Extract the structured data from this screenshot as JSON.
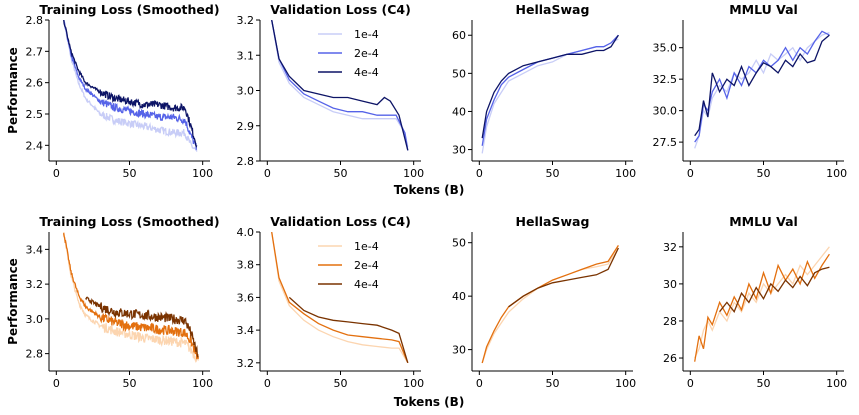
{
  "chart_data": [
    {
      "type": "line",
      "title": "Training Loss (Smoothed)",
      "ylabel": "Performance",
      "xlim": [
        -5,
        105
      ],
      "ylim": [
        2.35,
        2.8
      ],
      "xticks": [
        0,
        50,
        100
      ],
      "yticks": [
        2.4,
        2.5,
        2.6,
        2.7,
        2.8
      ],
      "ytick_labels": [
        "2.4",
        "2.5",
        "2.6",
        "2.7",
        "2.8"
      ],
      "palette": "blue",
      "noise": 0.012,
      "series": [
        {
          "name": "1e-4",
          "color": "#c8cdf7",
          "x": [
            5,
            10,
            15,
            20,
            30,
            40,
            50,
            60,
            70,
            80,
            88,
            92,
            96
          ],
          "y": [
            2.8,
            2.68,
            2.6,
            2.55,
            2.5,
            2.48,
            2.47,
            2.46,
            2.45,
            2.44,
            2.44,
            2.4,
            2.38
          ]
        },
        {
          "name": "2e-4",
          "color": "#5663e8",
          "x": [
            5,
            10,
            15,
            20,
            30,
            40,
            50,
            60,
            70,
            80,
            88,
            92,
            96
          ],
          "y": [
            2.8,
            2.69,
            2.62,
            2.58,
            2.54,
            2.52,
            2.51,
            2.5,
            2.49,
            2.49,
            2.48,
            2.43,
            2.39
          ]
        },
        {
          "name": "4e-4",
          "color": "#0d1466",
          "x": [
            5,
            10,
            15,
            20,
            30,
            40,
            50,
            60,
            70,
            80,
            88,
            92,
            96
          ],
          "y": [
            2.8,
            2.7,
            2.64,
            2.6,
            2.57,
            2.55,
            2.54,
            2.53,
            2.53,
            2.52,
            2.52,
            2.46,
            2.4
          ]
        }
      ]
    },
    {
      "type": "line",
      "title": "Validation Loss (C4)",
      "xlim": [
        -5,
        105
      ],
      "ylim": [
        2.8,
        3.2
      ],
      "xticks": [
        0,
        50,
        100
      ],
      "yticks": [
        2.8,
        2.9,
        3.0,
        3.1,
        3.2
      ],
      "ytick_labels": [
        "2.8",
        "2.9",
        "3.0",
        "3.1",
        "3.2"
      ],
      "palette": "blue",
      "legend": "top-right",
      "noise": 0,
      "series": [
        {
          "name": "1e-4",
          "color": "#c8cdf7",
          "x": [
            3,
            8,
            15,
            25,
            35,
            45,
            55,
            65,
            75,
            82,
            88,
            94,
            96
          ],
          "y": [
            3.2,
            3.08,
            3.02,
            2.98,
            2.96,
            2.94,
            2.93,
            2.92,
            2.92,
            2.92,
            2.92,
            2.88,
            2.84
          ]
        },
        {
          "name": "2e-4",
          "color": "#5663e8",
          "x": [
            3,
            8,
            15,
            25,
            35,
            45,
            55,
            65,
            75,
            82,
            88,
            94,
            96
          ],
          "y": [
            3.2,
            3.09,
            3.03,
            2.99,
            2.97,
            2.95,
            2.94,
            2.94,
            2.93,
            2.93,
            2.93,
            2.88,
            2.83
          ]
        },
        {
          "name": "4e-4",
          "color": "#0d1466",
          "x": [
            3,
            8,
            15,
            25,
            35,
            45,
            55,
            65,
            75,
            80,
            84,
            90,
            96
          ],
          "y": [
            3.2,
            3.09,
            3.04,
            3.0,
            2.99,
            2.98,
            2.98,
            2.97,
            2.96,
            2.98,
            2.97,
            2.93,
            2.83
          ]
        }
      ]
    },
    {
      "type": "line",
      "title": "HellaSwag",
      "xlim": [
        -5,
        105
      ],
      "ylim": [
        27,
        64
      ],
      "xticks": [
        0,
        50,
        100
      ],
      "yticks": [
        30,
        40,
        50,
        60
      ],
      "ytick_labels": [
        "30",
        "40",
        "50",
        "60"
      ],
      "palette": "blue",
      "noise": 0,
      "series": [
        {
          "name": "1e-4",
          "color": "#c8cdf7",
          "x": [
            2,
            5,
            10,
            15,
            20,
            30,
            40,
            50,
            60,
            70,
            80,
            85,
            90,
            95
          ],
          "y": [
            29,
            36,
            42,
            45,
            48,
            50,
            52,
            53,
            55,
            56,
            57,
            57,
            58,
            59
          ]
        },
        {
          "name": "2e-4",
          "color": "#5663e8",
          "x": [
            2,
            5,
            10,
            15,
            20,
            30,
            40,
            50,
            60,
            70,
            80,
            85,
            90,
            95
          ],
          "y": [
            31,
            38,
            43,
            47,
            49,
            51,
            53,
            54,
            55,
            56,
            57,
            57,
            58,
            60
          ]
        },
        {
          "name": "4e-4",
          "color": "#0d1466",
          "x": [
            2,
            5,
            10,
            15,
            20,
            30,
            40,
            50,
            60,
            70,
            80,
            85,
            90,
            95
          ],
          "y": [
            33,
            40,
            45,
            48,
            50,
            52,
            53,
            54,
            55,
            55,
            56,
            56,
            57,
            60
          ]
        }
      ]
    },
    {
      "type": "line",
      "title": "MMLU Val",
      "xlim": [
        -5,
        105
      ],
      "ylim": [
        26,
        37.2
      ],
      "xticks": [
        0,
        50,
        100
      ],
      "yticks": [
        27.5,
        30.0,
        32.5,
        35.0
      ],
      "ytick_labels": [
        "27.5",
        "30.0",
        "32.5",
        "35.0"
      ],
      "palette": "blue",
      "noise": 0,
      "series": [
        {
          "name": "1e-4",
          "color": "#c8cdf7",
          "x": [
            3,
            6,
            9,
            12,
            15,
            20,
            25,
            30,
            35,
            40,
            45,
            50,
            55,
            60,
            65,
            70,
            75,
            80,
            85,
            90,
            95
          ],
          "y": [
            27,
            28,
            30,
            29.5,
            31,
            32,
            31.5,
            33,
            32.5,
            33,
            34,
            33,
            34.5,
            34,
            34.5,
            35,
            34,
            35,
            35.5,
            36,
            36.2
          ]
        },
        {
          "name": "2e-4",
          "color": "#5663e8",
          "x": [
            3,
            6,
            9,
            12,
            15,
            20,
            25,
            30,
            35,
            40,
            45,
            50,
            55,
            60,
            65,
            70,
            75,
            80,
            85,
            90,
            95
          ],
          "y": [
            27.5,
            28,
            30.5,
            30,
            31.5,
            32.5,
            31,
            33,
            32,
            33.5,
            33,
            34,
            33.5,
            34,
            35,
            34,
            35,
            34.5,
            35.5,
            36.3,
            36
          ]
        },
        {
          "name": "4e-4",
          "color": "#0d1466",
          "x": [
            3,
            6,
            9,
            12,
            15,
            20,
            25,
            30,
            35,
            40,
            45,
            50,
            55,
            60,
            65,
            70,
            75,
            80,
            85,
            90,
            95
          ],
          "y": [
            28,
            28.5,
            30.8,
            29.5,
            33,
            31.5,
            32.5,
            32,
            33.5,
            32,
            33,
            33.8,
            33.5,
            33,
            34,
            33.5,
            34.5,
            33.8,
            34,
            35.5,
            36
          ]
        }
      ]
    },
    {
      "type": "line",
      "title": "Training Loss (Smoothed)",
      "ylabel": "Performance",
      "xlim": [
        -5,
        105
      ],
      "ylim": [
        2.7,
        3.5
      ],
      "xticks": [
        0,
        50,
        100
      ],
      "yticks": [
        2.8,
        3.0,
        3.2,
        3.4
      ],
      "ytick_labels": [
        "2.8",
        "3.0",
        "3.2",
        "3.4"
      ],
      "palette": "orange",
      "noise": 0.028,
      "series": [
        {
          "name": "1e-4",
          "color": "#fcd5b0",
          "x": [
            5,
            10,
            15,
            20,
            30,
            40,
            50,
            60,
            70,
            80,
            88,
            92,
            97
          ],
          "y": [
            3.5,
            3.25,
            3.1,
            3.02,
            2.96,
            2.93,
            2.91,
            2.89,
            2.88,
            2.87,
            2.86,
            2.82,
            2.76
          ]
        },
        {
          "name": "2e-4",
          "color": "#e3700f",
          "x": [
            5,
            10,
            15,
            20,
            30,
            40,
            50,
            60,
            70,
            80,
            88,
            92,
            97
          ],
          "y": [
            3.5,
            3.27,
            3.14,
            3.07,
            3.01,
            2.98,
            2.96,
            2.95,
            2.94,
            2.93,
            2.92,
            2.87,
            2.77
          ]
        },
        {
          "name": "4e-4",
          "color": "#7a3300",
          "x": [
            20,
            30,
            40,
            50,
            60,
            70,
            80,
            88,
            92,
            97
          ],
          "y": [
            3.12,
            3.07,
            3.04,
            3.03,
            3.02,
            3.01,
            3.0,
            2.99,
            2.92,
            2.78
          ]
        }
      ]
    },
    {
      "type": "line",
      "title": "Validation Loss (C4)",
      "xlim": [
        -5,
        105
      ],
      "ylim": [
        3.15,
        4.0
      ],
      "xticks": [
        0,
        50,
        100
      ],
      "yticks": [
        3.2,
        3.4,
        3.6,
        3.8,
        4.0
      ],
      "ytick_labels": [
        "3.2",
        "3.4",
        "3.6",
        "3.8",
        "4.0"
      ],
      "palette": "orange",
      "legend": "top-right",
      "noise": 0,
      "series": [
        {
          "name": "1e-4",
          "color": "#fcd5b0",
          "x": [
            3,
            8,
            15,
            25,
            35,
            45,
            55,
            65,
            75,
            85,
            90,
            96
          ],
          "y": [
            4.0,
            3.7,
            3.55,
            3.46,
            3.4,
            3.36,
            3.33,
            3.31,
            3.3,
            3.29,
            3.29,
            3.2
          ]
        },
        {
          "name": "2e-4",
          "color": "#e3700f",
          "x": [
            3,
            8,
            15,
            25,
            35,
            45,
            55,
            65,
            75,
            85,
            90,
            96
          ],
          "y": [
            4.0,
            3.72,
            3.57,
            3.5,
            3.44,
            3.4,
            3.37,
            3.36,
            3.35,
            3.34,
            3.33,
            3.2
          ]
        },
        {
          "name": "4e-4",
          "color": "#7a3300",
          "x": [
            15,
            25,
            35,
            45,
            55,
            65,
            75,
            85,
            90,
            96
          ],
          "y": [
            3.6,
            3.52,
            3.48,
            3.46,
            3.45,
            3.44,
            3.43,
            3.4,
            3.38,
            3.2
          ]
        }
      ]
    },
    {
      "type": "line",
      "title": "HellaSwag",
      "xlim": [
        -5,
        105
      ],
      "ylim": [
        26,
        52
      ],
      "xticks": [
        0,
        50,
        100
      ],
      "yticks": [
        30,
        40,
        50
      ],
      "ytick_labels": [
        "30",
        "40",
        "50"
      ],
      "palette": "orange",
      "noise": 0,
      "series": [
        {
          "name": "1e-4",
          "color": "#fcd5b0",
          "x": [
            2,
            5,
            10,
            15,
            20,
            30,
            40,
            50,
            60,
            70,
            80,
            88,
            95
          ],
          "y": [
            27.5,
            30,
            33,
            35,
            37,
            39.5,
            41.5,
            43,
            44,
            45,
            45.5,
            46,
            49
          ]
        },
        {
          "name": "2e-4",
          "color": "#e3700f",
          "x": [
            2,
            5,
            10,
            15,
            20,
            30,
            40,
            50,
            60,
            70,
            80,
            88,
            95
          ],
          "y": [
            27.5,
            30.5,
            33.5,
            36,
            38,
            40,
            41.5,
            43,
            44,
            45,
            46,
            46.5,
            49.5
          ]
        },
        {
          "name": "4e-4",
          "color": "#7a3300",
          "x": [
            20,
            30,
            40,
            50,
            60,
            70,
            80,
            88,
            95
          ],
          "y": [
            38,
            40,
            41.5,
            42.5,
            43,
            43.5,
            44,
            45,
            49
          ]
        }
      ]
    },
    {
      "type": "line",
      "title": "MMLU Val",
      "xlim": [
        -5,
        105
      ],
      "ylim": [
        25.3,
        32.8
      ],
      "xticks": [
        0,
        50,
        100
      ],
      "yticks": [
        26,
        28,
        30,
        32
      ],
      "ytick_labels": [
        "26",
        "28",
        "30",
        "32"
      ],
      "palette": "orange",
      "noise": 0,
      "series": [
        {
          "name": "1e-4",
          "color": "#fcd5b0",
          "x": [
            3,
            6,
            9,
            12,
            15,
            20,
            25,
            30,
            35,
            40,
            45,
            50,
            55,
            60,
            65,
            70,
            75,
            80,
            85,
            90,
            95
          ],
          "y": [
            26,
            26.5,
            27.5,
            28,
            27.5,
            28.5,
            28,
            29,
            28.5,
            29.5,
            29,
            30,
            29.5,
            30,
            30.5,
            30,
            31,
            30.5,
            31,
            31.5,
            32
          ]
        },
        {
          "name": "2e-4",
          "color": "#e3700f",
          "x": [
            3,
            6,
            9,
            12,
            15,
            20,
            25,
            30,
            35,
            40,
            45,
            50,
            55,
            60,
            65,
            70,
            75,
            80,
            85,
            90,
            95
          ],
          "y": [
            25.8,
            27.2,
            26.5,
            28.2,
            27.8,
            29,
            28.3,
            29.3,
            28.6,
            30,
            29.2,
            30.6,
            29.5,
            31,
            30.2,
            30.8,
            30,
            31.2,
            30.3,
            31,
            31.6
          ]
        },
        {
          "name": "4e-4",
          "color": "#7a3300",
          "x": [
            20,
            25,
            30,
            35,
            40,
            45,
            50,
            55,
            60,
            65,
            70,
            75,
            80,
            85,
            90,
            95
          ],
          "y": [
            28.5,
            29,
            28.5,
            29.5,
            29,
            29.8,
            29.2,
            30,
            29.6,
            30.2,
            29.8,
            30.4,
            29.9,
            30.6,
            30.8,
            30.9
          ]
        }
      ]
    }
  ],
  "shared": {
    "xlabel": "Tokens (B)"
  }
}
